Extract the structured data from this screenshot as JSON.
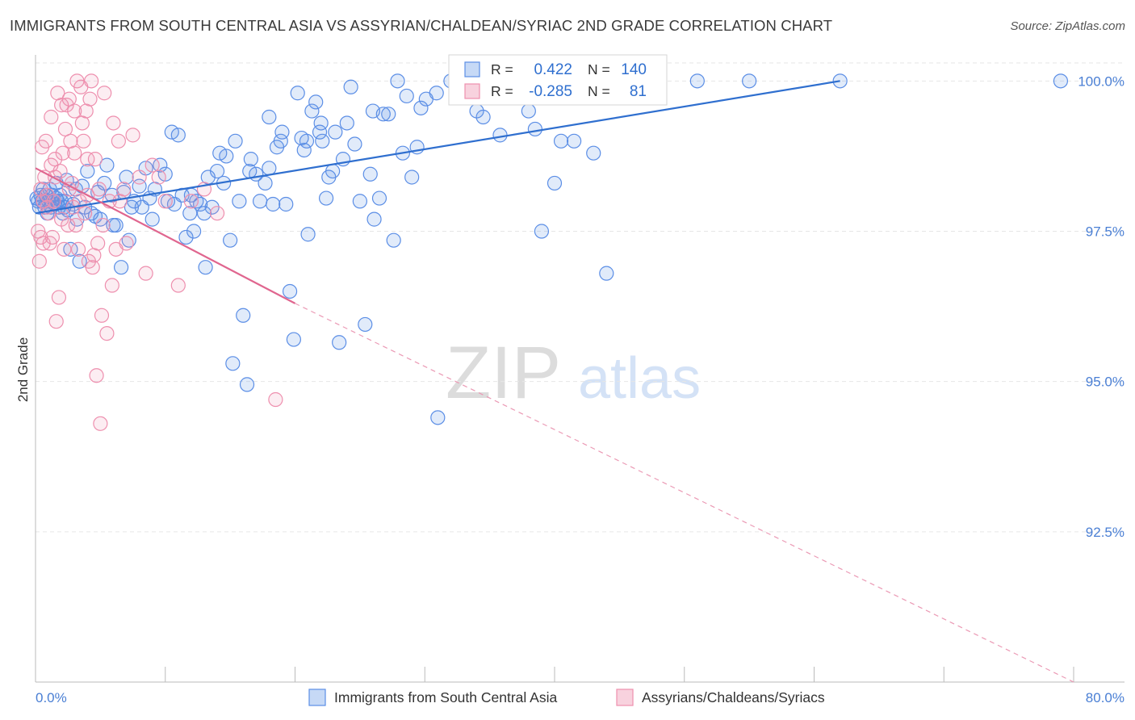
{
  "header": {
    "title": "IMMIGRANTS FROM SOUTH CENTRAL ASIA VS ASSYRIAN/CHALDEAN/SYRIAC 2ND GRADE CORRELATION CHART",
    "source": "Source: ZipAtlas.com"
  },
  "watermark": {
    "zip": "ZIP",
    "atlas": "atlas"
  },
  "colors": {
    "blue": "#5b8ee6",
    "blue_line": "#2f6fcf",
    "pink": "#ee8fae",
    "pink_line": "#e0668f",
    "axis_text": "#4a7fd4"
  },
  "legend_box": {
    "rows": [
      {
        "r_label": "R =",
        "r_value": "0.422",
        "n_label": "N =",
        "n_value": "140"
      },
      {
        "r_label": "R =",
        "r_value": "-0.285",
        "n_label": "N =",
        "n_value": "81"
      }
    ]
  },
  "chart_data": {
    "type": "scatter",
    "ylabel": "2nd Grade",
    "xlim": [
      0,
      80
    ],
    "ylim": [
      90.0,
      100.3
    ],
    "x_tick_labels": [
      "0.0%",
      "80.0%"
    ],
    "y_ticks": [
      {
        "value": 100.0,
        "label": "100.0%"
      },
      {
        "value": 97.5,
        "label": "97.5%"
      },
      {
        "value": 95.0,
        "label": "95.0%"
      },
      {
        "value": 92.5,
        "label": "92.5%"
      }
    ],
    "grid": true,
    "legend_position": "bottom",
    "series": [
      {
        "name": "Immigrants from South Central Asia",
        "color": "#5b8ee6",
        "trend": {
          "x0": 0.0,
          "y0": 97.8,
          "x1": 62.0,
          "y1": 100.0
        },
        "points": [
          [
            0.2,
            98.0
          ],
          [
            0.4,
            98.1
          ],
          [
            0.5,
            98.0
          ],
          [
            0.7,
            97.9
          ],
          [
            0.8,
            98.1
          ],
          [
            1.0,
            98.0
          ],
          [
            1.1,
            98.2
          ],
          [
            1.2,
            97.9
          ],
          [
            1.3,
            98.1
          ],
          [
            1.4,
            98.0
          ],
          [
            1.5,
            97.95
          ],
          [
            1.6,
            98.05
          ],
          [
            1.7,
            98.0
          ],
          [
            1.8,
            97.9
          ],
          [
            1.9,
            98.1
          ],
          [
            2.0,
            98.0
          ],
          [
            2.1,
            97.8
          ],
          [
            2.2,
            97.9
          ],
          [
            2.3,
            98.0
          ],
          [
            2.5,
            97.85
          ],
          [
            2.7,
            97.2
          ],
          [
            2.9,
            97.95
          ],
          [
            3.1,
            98.2
          ],
          [
            3.4,
            97.0
          ],
          [
            3.6,
            98.25
          ],
          [
            3.8,
            97.9
          ],
          [
            4.0,
            98.5
          ],
          [
            4.3,
            97.8
          ],
          [
            4.6,
            97.75
          ],
          [
            5.0,
            97.7
          ],
          [
            5.3,
            98.3
          ],
          [
            5.5,
            98.6
          ],
          [
            5.9,
            98.1
          ],
          [
            6.2,
            97.6
          ],
          [
            6.6,
            96.9
          ],
          [
            6.8,
            98.15
          ],
          [
            7.2,
            97.35
          ],
          [
            7.4,
            97.9
          ],
          [
            7.6,
            98.0
          ],
          [
            8.0,
            98.25
          ],
          [
            8.2,
            97.9
          ],
          [
            8.5,
            98.55
          ],
          [
            8.8,
            98.05
          ],
          [
            9.2,
            98.2
          ],
          [
            9.6,
            98.6
          ],
          [
            10.0,
            98.45
          ],
          [
            10.2,
            98.0
          ],
          [
            10.5,
            99.15
          ],
          [
            10.7,
            97.95
          ],
          [
            11.0,
            99.1
          ],
          [
            11.3,
            98.1
          ],
          [
            11.6,
            97.4
          ],
          [
            11.9,
            97.8
          ],
          [
            12.2,
            97.5
          ],
          [
            12.4,
            98.0
          ],
          [
            12.7,
            97.95
          ],
          [
            13.1,
            96.9
          ],
          [
            13.3,
            98.4
          ],
          [
            13.6,
            97.9
          ],
          [
            14.0,
            98.5
          ],
          [
            14.2,
            98.8
          ],
          [
            14.5,
            98.3
          ],
          [
            14.7,
            98.75
          ],
          [
            15.0,
            97.35
          ],
          [
            15.2,
            95.3
          ],
          [
            15.4,
            99.0
          ],
          [
            15.7,
            98.0
          ],
          [
            16.0,
            96.1
          ],
          [
            16.3,
            94.95
          ],
          [
            16.6,
            98.7
          ],
          [
            17.0,
            98.45
          ],
          [
            17.3,
            98.0
          ],
          [
            17.7,
            98.3
          ],
          [
            18.0,
            98.55
          ],
          [
            18.3,
            97.95
          ],
          [
            18.6,
            98.9
          ],
          [
            18.9,
            99.0
          ],
          [
            19.0,
            99.15
          ],
          [
            19.3,
            97.95
          ],
          [
            19.6,
            96.5
          ],
          [
            19.9,
            95.7
          ],
          [
            20.2,
            99.8
          ],
          [
            20.5,
            99.05
          ],
          [
            20.7,
            98.85
          ],
          [
            20.9,
            99.0
          ],
          [
            21.0,
            97.45
          ],
          [
            21.3,
            99.5
          ],
          [
            21.6,
            99.65
          ],
          [
            21.9,
            99.15
          ],
          [
            22.1,
            99.0
          ],
          [
            22.4,
            98.05
          ],
          [
            22.6,
            98.4
          ],
          [
            22.9,
            98.5
          ],
          [
            23.1,
            99.15
          ],
          [
            23.4,
            95.65
          ],
          [
            23.7,
            98.7
          ],
          [
            24.0,
            99.3
          ],
          [
            24.3,
            99.9
          ],
          [
            24.6,
            98.95
          ],
          [
            25.0,
            98.0
          ],
          [
            25.4,
            95.95
          ],
          [
            25.8,
            98.45
          ],
          [
            26.1,
            97.7
          ],
          [
            26.5,
            98.05
          ],
          [
            26.8,
            99.45
          ],
          [
            27.2,
            99.45
          ],
          [
            27.6,
            97.35
          ],
          [
            27.9,
            100.0
          ],
          [
            28.3,
            98.8
          ],
          [
            28.6,
            99.75
          ],
          [
            29.0,
            98.4
          ],
          [
            29.4,
            98.9
          ],
          [
            29.7,
            99.55
          ],
          [
            30.1,
            99.7
          ],
          [
            30.9,
            99.8
          ],
          [
            31.0,
            94.4
          ],
          [
            32.0,
            100.0
          ],
          [
            32.4,
            100.0
          ],
          [
            32.8,
            100.0
          ],
          [
            33.2,
            100.0
          ],
          [
            34.0,
            99.5
          ],
          [
            34.5,
            99.4
          ],
          [
            35.0,
            100.0
          ],
          [
            35.8,
            99.1
          ],
          [
            37.0,
            100.0
          ],
          [
            38.0,
            99.5
          ],
          [
            39.0,
            97.5
          ],
          [
            40.5,
            99.0
          ],
          [
            41.5,
            99.0
          ],
          [
            42.0,
            100.0
          ],
          [
            43.0,
            98.8
          ],
          [
            43.5,
            100.0
          ],
          [
            44.0,
            96.8
          ],
          [
            45.0,
            100.0
          ],
          [
            47.0,
            100.0
          ],
          [
            51.0,
            100.0
          ],
          [
            55.0,
            100.0
          ],
          [
            62.0,
            100.0
          ],
          [
            79.0,
            100.0
          ],
          [
            40.0,
            98.3
          ],
          [
            38.5,
            99.2
          ],
          [
            36.5,
            100.0
          ],
          [
            33.5,
            100.0
          ],
          [
            26.0,
            99.5
          ],
          [
            22.0,
            99.3
          ],
          [
            18.0,
            99.4
          ],
          [
            16.5,
            98.5
          ],
          [
            13.0,
            97.8
          ],
          [
            12.0,
            98.1
          ],
          [
            9.0,
            97.7
          ],
          [
            7.0,
            98.4
          ],
          [
            6.0,
            97.6
          ],
          [
            4.8,
            98.15
          ],
          [
            3.2,
            97.7
          ],
          [
            2.4,
            98.35
          ],
          [
            1.6,
            98.3
          ],
          [
            0.9,
            97.8
          ],
          [
            0.6,
            98.2
          ],
          [
            0.3,
            97.9
          ],
          [
            0.1,
            98.05
          ]
        ]
      },
      {
        "name": "Assyrians/Chaldeans/Syriacs",
        "color": "#ee8fae",
        "trend": {
          "x0": 0.0,
          "y0": 98.55,
          "x1": 20.0,
          "y1": 96.3
        },
        "trend_dashed": {
          "x0": 20.0,
          "y0": 96.3,
          "x1": 80.0,
          "y1": 90.0
        },
        "points": [
          [
            0.2,
            97.5
          ],
          [
            0.3,
            97.0
          ],
          [
            0.4,
            98.2
          ],
          [
            0.5,
            98.9
          ],
          [
            0.6,
            97.3
          ],
          [
            0.7,
            98.4
          ],
          [
            0.8,
            99.0
          ],
          [
            0.9,
            98.1
          ],
          [
            1.0,
            97.8
          ],
          [
            1.1,
            97.3
          ],
          [
            1.2,
            98.6
          ],
          [
            1.3,
            97.4
          ],
          [
            1.4,
            98.0
          ],
          [
            1.5,
            98.7
          ],
          [
            1.6,
            96.0
          ],
          [
            1.7,
            99.8
          ],
          [
            1.8,
            96.4
          ],
          [
            1.9,
            98.5
          ],
          [
            2.0,
            97.7
          ],
          [
            2.1,
            98.8
          ],
          [
            2.2,
            97.2
          ],
          [
            2.3,
            99.2
          ],
          [
            2.4,
            99.6
          ],
          [
            2.5,
            97.6
          ],
          [
            2.6,
            98.2
          ],
          [
            2.7,
            99.0
          ],
          [
            2.8,
            98.3
          ],
          [
            2.9,
            97.9
          ],
          [
            3.0,
            99.5
          ],
          [
            3.1,
            97.6
          ],
          [
            3.2,
            100.0
          ],
          [
            3.3,
            97.2
          ],
          [
            3.4,
            98.0
          ],
          [
            3.5,
            99.9
          ],
          [
            3.6,
            99.3
          ],
          [
            3.7,
            99.0
          ],
          [
            3.8,
            97.8
          ],
          [
            3.9,
            99.5
          ],
          [
            4.0,
            98.7
          ],
          [
            4.1,
            97.0
          ],
          [
            4.2,
            99.7
          ],
          [
            4.3,
            100.0
          ],
          [
            4.4,
            96.9
          ],
          [
            4.5,
            97.1
          ],
          [
            4.6,
            98.7
          ],
          [
            4.7,
            95.1
          ],
          [
            4.8,
            97.3
          ],
          [
            4.9,
            98.2
          ],
          [
            5.0,
            94.3
          ],
          [
            5.1,
            96.1
          ],
          [
            5.3,
            99.8
          ],
          [
            5.5,
            95.8
          ],
          [
            5.7,
            98.0
          ],
          [
            5.9,
            96.6
          ],
          [
            6.0,
            99.3
          ],
          [
            6.2,
            97.2
          ],
          [
            6.5,
            98.0
          ],
          [
            6.8,
            98.2
          ],
          [
            7.0,
            97.3
          ],
          [
            7.5,
            99.1
          ],
          [
            8.0,
            98.4
          ],
          [
            8.5,
            96.8
          ],
          [
            9.0,
            98.6
          ],
          [
            9.5,
            98.4
          ],
          [
            10.0,
            98.0
          ],
          [
            11.0,
            96.6
          ],
          [
            12.0,
            98.0
          ],
          [
            13.0,
            98.2
          ],
          [
            14.0,
            97.8
          ],
          [
            18.5,
            94.7
          ],
          [
            0.4,
            97.4
          ],
          [
            0.6,
            98.0
          ],
          [
            0.9,
            97.9
          ],
          [
            1.2,
            99.4
          ],
          [
            1.5,
            98.4
          ],
          [
            2.0,
            99.6
          ],
          [
            2.6,
            99.7
          ],
          [
            3.0,
            98.8
          ],
          [
            4.0,
            98.1
          ],
          [
            5.2,
            97.6
          ],
          [
            6.4,
            99.0
          ]
        ]
      }
    ],
    "legend": [
      "Immigrants from South Central Asia",
      "Assyrians/Chaldeans/Syriacs"
    ]
  }
}
